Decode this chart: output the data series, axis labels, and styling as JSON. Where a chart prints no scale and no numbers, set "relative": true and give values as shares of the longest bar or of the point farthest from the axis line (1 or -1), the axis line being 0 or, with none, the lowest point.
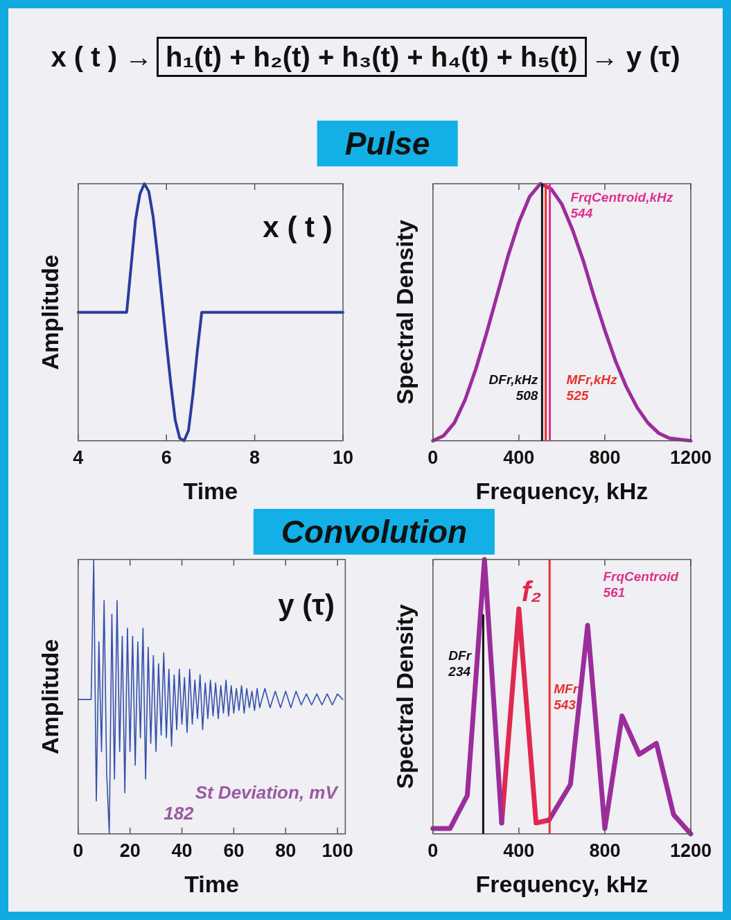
{
  "chart_data": [
    {
      "type": "line",
      "title": "x ( t ) → h₁(t) + h₂(t) + h₃(t) + h₄(t) + h₅(t) → y (τ)",
      "subtitle": "Pulse",
      "xlabel": "Time",
      "ylabel": "Amplitude",
      "relative": true,
      "xlim": [
        4,
        10
      ],
      "xticks": [
        4,
        6,
        8,
        10
      ],
      "x": [
        4,
        5.1,
        5.2,
        5.3,
        5.4,
        5.5,
        5.6,
        5.7,
        5.8,
        5.9,
        6.0,
        6.1,
        6.2,
        6.3,
        6.4,
        6.5,
        6.6,
        6.7,
        6.8,
        10
      ],
      "series": [
        {
          "color": "#2a3c9c",
          "values": [
            0.5,
            0.5,
            0.68,
            0.86,
            0.96,
            1,
            0.97,
            0.87,
            0.72,
            0.55,
            0.38,
            0.22,
            0.08,
            0.01,
            0,
            0.04,
            0.18,
            0.35,
            0.5,
            0.5
          ]
        }
      ],
      "annotations": [
        "x ( t )"
      ]
    },
    {
      "type": "line",
      "xlabel": "Frequency, kHz",
      "ylabel": "Spectral Density",
      "relative": true,
      "xlim": [
        0,
        1200
      ],
      "xticks": [
        0,
        400,
        800,
        1200
      ],
      "x": [
        0,
        50,
        100,
        150,
        200,
        250,
        300,
        350,
        400,
        450,
        500,
        550,
        600,
        650,
        700,
        750,
        800,
        850,
        900,
        950,
        1000,
        1050,
        1100,
        1150,
        1200
      ],
      "series": [
        {
          "color": "#9b2d9b",
          "values": [
            0,
            0.02,
            0.07,
            0.16,
            0.28,
            0.42,
            0.57,
            0.72,
            0.85,
            0.95,
            1,
            0.98,
            0.92,
            0.82,
            0.7,
            0.56,
            0.43,
            0.31,
            0.21,
            0.13,
            0.07,
            0.03,
            0.01,
            0.005,
            0
          ]
        }
      ],
      "ref_lines": [
        {
          "axis": "x",
          "value": 508,
          "label": "DFr,kHz 508",
          "color": "#111111"
        },
        {
          "axis": "x",
          "value": 525,
          "label": "MFr,kHz 525",
          "color": "#e8302a"
        },
        {
          "axis": "x",
          "value": 544,
          "label": "FrqCentroid,kHz 544",
          "color": "#e0308a"
        }
      ]
    },
    {
      "type": "line",
      "title": "Convolution",
      "xlabel": "Time",
      "ylabel": "Amplitude",
      "relative": true,
      "xlim": [
        0,
        103
      ],
      "xticks": [
        0,
        20,
        40,
        60,
        80,
        100
      ],
      "x": [
        0,
        5,
        6,
        7,
        8,
        9,
        10,
        11,
        12,
        13,
        14,
        15,
        16,
        17,
        18,
        19,
        20,
        21,
        22,
        23,
        24,
        25,
        26,
        27,
        28,
        29,
        30,
        31,
        32,
        33,
        34,
        35,
        36,
        37,
        38,
        39,
        40,
        41,
        42,
        43,
        44,
        45,
        46,
        47,
        48,
        49,
        50,
        51,
        52,
        53,
        54,
        55,
        56,
        57,
        58,
        59,
        60,
        61,
        62,
        63,
        64,
        65,
        66,
        67,
        68,
        69,
        70,
        72,
        74,
        76,
        78,
        80,
        82,
        84,
        86,
        88,
        90,
        92,
        94,
        96,
        98,
        100,
        102
      ],
      "series": [
        {
          "color": "#3450a8",
          "values": [
            0.49,
            0.49,
            1.0,
            0.12,
            0.7,
            0.3,
            0.85,
            0.22,
            0.0,
            0.8,
            0.2,
            0.85,
            0.3,
            0.72,
            0.15,
            0.75,
            0.3,
            0.72,
            0.25,
            0.7,
            0.35,
            0.75,
            0.2,
            0.68,
            0.33,
            0.65,
            0.3,
            0.62,
            0.36,
            0.66,
            0.35,
            0.6,
            0.32,
            0.58,
            0.38,
            0.6,
            0.4,
            0.57,
            0.37,
            0.6,
            0.4,
            0.56,
            0.42,
            0.58,
            0.38,
            0.55,
            0.42,
            0.56,
            0.43,
            0.55,
            0.42,
            0.54,
            0.44,
            0.56,
            0.43,
            0.54,
            0.44,
            0.53,
            0.45,
            0.54,
            0.44,
            0.53,
            0.46,
            0.52,
            0.45,
            0.53,
            0.46,
            0.53,
            0.46,
            0.52,
            0.46,
            0.52,
            0.46,
            0.52,
            0.47,
            0.51,
            0.47,
            0.51,
            0.47,
            0.51,
            0.47,
            0.51,
            0.49
          ]
        }
      ],
      "annotations": [
        "y (τ)",
        "St Deviation, mV 182"
      ]
    },
    {
      "type": "line",
      "xlabel": "Frequency, kHz",
      "ylabel": "Spectral Density",
      "relative": true,
      "xlim": [
        0,
        1200
      ],
      "xticks": [
        0,
        400,
        800,
        1200
      ],
      "series": [
        {
          "color": "#9b2d9b",
          "x": [
            0,
            80,
            160,
            240,
            320,
            400,
            480,
            540,
            640,
            720,
            800,
            880,
            960,
            1040,
            1120,
            1200
          ],
          "values": [
            0.02,
            0.02,
            0.14,
            1,
            0.04,
            null,
            null,
            0.05,
            0.18,
            0.76,
            0.02,
            0.43,
            0.29,
            0.33,
            0.07,
            0
          ]
        },
        {
          "name": "f₂",
          "color": "#e02850",
          "x": [
            320,
            400,
            480,
            540
          ],
          "values": [
            0.04,
            0.82,
            0.04,
            0.05
          ]
        }
      ],
      "ref_lines": [
        {
          "axis": "x",
          "value": 234,
          "label": "DFr 234",
          "color": "#111111"
        },
        {
          "axis": "x",
          "value": 543,
          "label": "MFr 543",
          "color": "#e8302a"
        }
      ],
      "annotations": [
        "FrqCentroid 561"
      ]
    }
  ]
}
